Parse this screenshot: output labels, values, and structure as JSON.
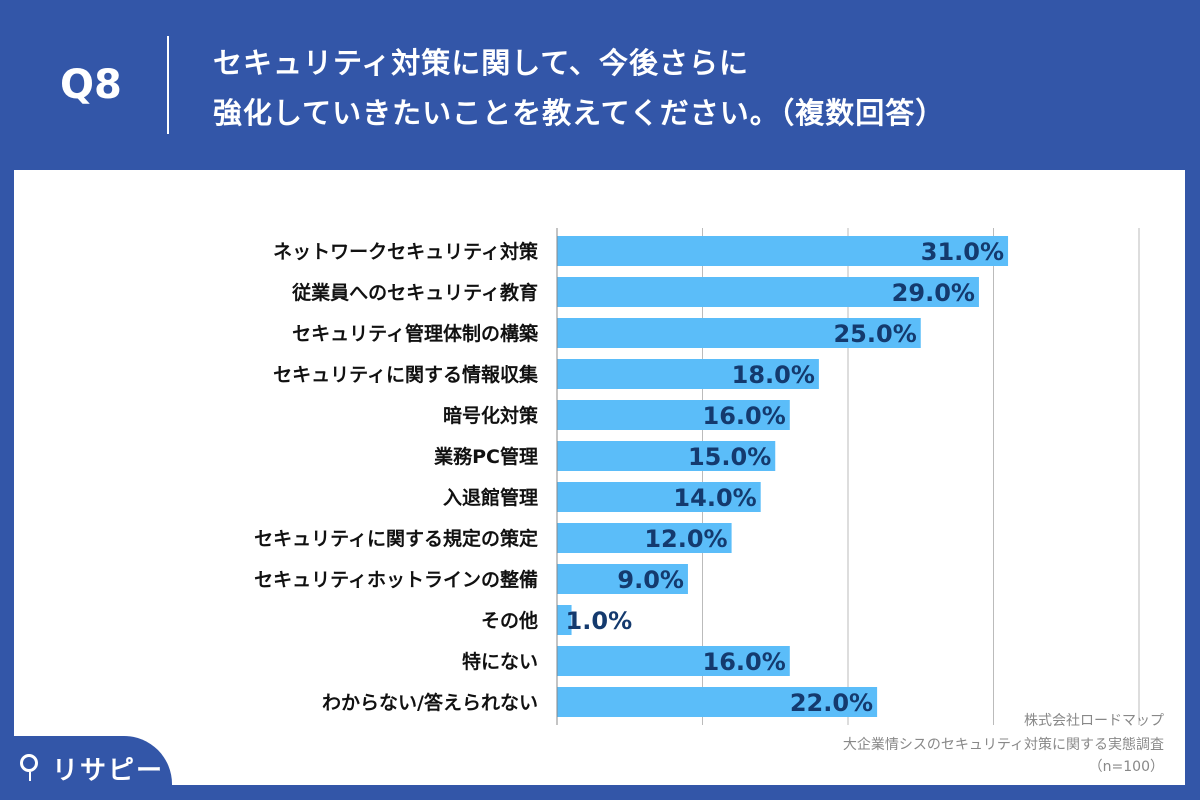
{
  "header": {
    "question_no": "Q8",
    "title_line1": "セキュリティ対策に関して、今後さらに",
    "title_line2": "強化していきたいことを教えてください。（複数回答）"
  },
  "chart_data": {
    "type": "bar",
    "orientation": "horizontal",
    "categories": [
      "ネットワークセキュリティ対策",
      "従業員へのセキュリティ教育",
      "セキュリティ管理体制の構築",
      "セキュリティに関する情報収集",
      "暗号化対策",
      "業務PC管理",
      "入退館管理",
      "セキュリティに関する規定の策定",
      "セキュリティホットラインの整備",
      "その他",
      "特にない",
      "わからない/答えられない"
    ],
    "values": [
      31.0,
      29.0,
      25.0,
      18.0,
      16.0,
      15.0,
      14.0,
      12.0,
      9.0,
      1.0,
      16.0,
      22.0
    ],
    "value_labels": [
      "31.0%",
      "29.0%",
      "25.0%",
      "18.0%",
      "16.0%",
      "15.0%",
      "14.0%",
      "12.0%",
      "9.0%",
      "1.0%",
      "16.0%",
      "22.0%"
    ],
    "xlim": [
      0,
      40
    ],
    "grid": true,
    "colors": {
      "bar": "#5bbdf9",
      "label": "#143a6e"
    }
  },
  "source": {
    "line1": "株式会社ロードマップ",
    "line2": "大企業情シスのセキュリティ対策に関する実態調査",
    "line3": "（n=100）"
  },
  "logo": {
    "text": "リサピー"
  }
}
